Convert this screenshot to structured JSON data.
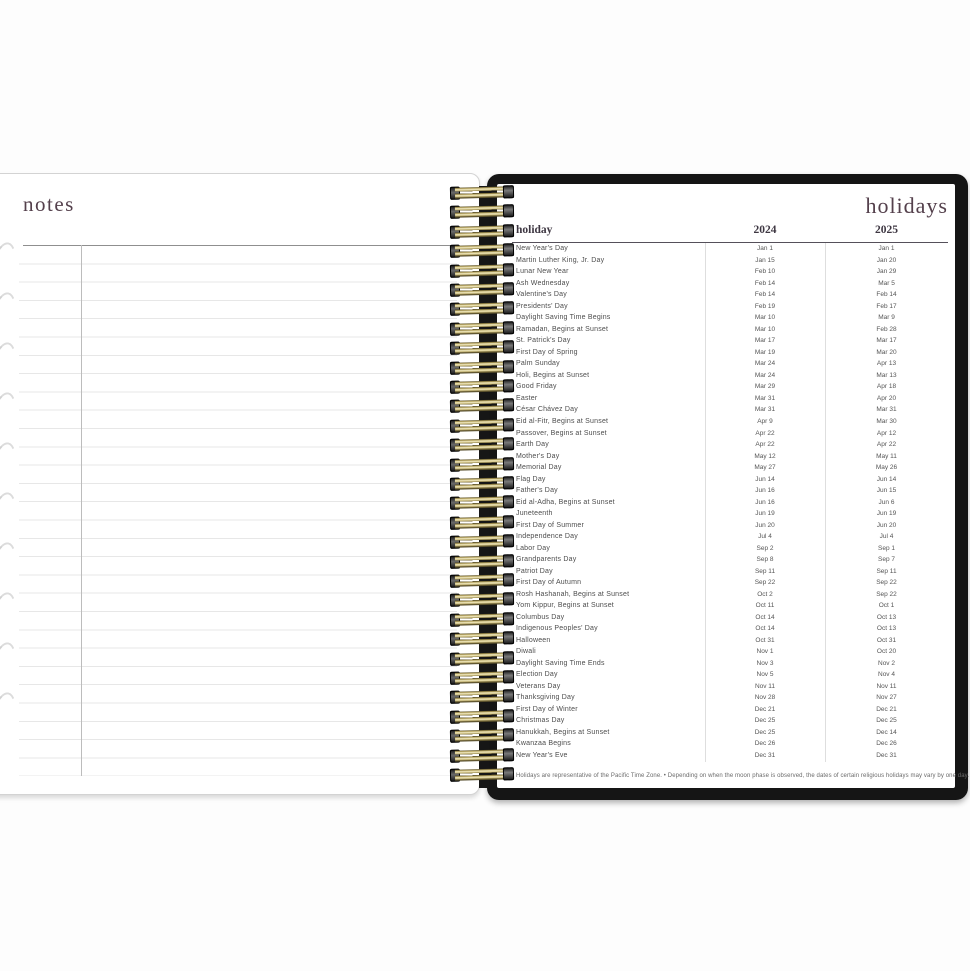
{
  "left_page": {
    "title": "notes"
  },
  "right_page": {
    "title": "holidays",
    "table": {
      "headers": [
        "holiday",
        "2024",
        "2025"
      ],
      "rows": [
        {
          "name": "New Year's Day",
          "d2024": "Jan 1",
          "d2025": "Jan 1"
        },
        {
          "name": "Martin Luther King, Jr. Day",
          "d2024": "Jan 15",
          "d2025": "Jan 20"
        },
        {
          "name": "Lunar New Year",
          "d2024": "Feb 10",
          "d2025": "Jan 29"
        },
        {
          "name": "Ash Wednesday",
          "d2024": "Feb 14",
          "d2025": "Mar 5"
        },
        {
          "name": "Valentine's Day",
          "d2024": "Feb 14",
          "d2025": "Feb 14"
        },
        {
          "name": "Presidents' Day",
          "d2024": "Feb 19",
          "d2025": "Feb 17"
        },
        {
          "name": "Daylight Saving Time Begins",
          "d2024": "Mar 10",
          "d2025": "Mar 9"
        },
        {
          "name": "Ramadan, Begins at Sunset",
          "d2024": "Mar 10",
          "d2025": "Feb 28"
        },
        {
          "name": "St. Patrick's Day",
          "d2024": "Mar 17",
          "d2025": "Mar 17"
        },
        {
          "name": "First Day of Spring",
          "d2024": "Mar 19",
          "d2025": "Mar 20"
        },
        {
          "name": "Palm Sunday",
          "d2024": "Mar 24",
          "d2025": "Apr 13"
        },
        {
          "name": "Holi, Begins at Sunset",
          "d2024": "Mar 24",
          "d2025": "Mar 13"
        },
        {
          "name": "Good Friday",
          "d2024": "Mar 29",
          "d2025": "Apr 18"
        },
        {
          "name": "Easter",
          "d2024": "Mar 31",
          "d2025": "Apr 20"
        },
        {
          "name": "César Chávez Day",
          "d2024": "Mar 31",
          "d2025": "Mar 31"
        },
        {
          "name": "Eid al-Fitr, Begins at Sunset",
          "d2024": "Apr 9",
          "d2025": "Mar 30"
        },
        {
          "name": "Passover, Begins at Sunset",
          "d2024": "Apr 22",
          "d2025": "Apr 12"
        },
        {
          "name": "Earth Day",
          "d2024": "Apr 22",
          "d2025": "Apr 22"
        },
        {
          "name": "Mother's Day",
          "d2024": "May 12",
          "d2025": "May 11"
        },
        {
          "name": "Memorial Day",
          "d2024": "May 27",
          "d2025": "May 26"
        },
        {
          "name": "Flag Day",
          "d2024": "Jun 14",
          "d2025": "Jun 14"
        },
        {
          "name": "Father's Day",
          "d2024": "Jun 16",
          "d2025": "Jun 15"
        },
        {
          "name": "Eid al-Adha, Begins at Sunset",
          "d2024": "Jun 16",
          "d2025": "Jun 6"
        },
        {
          "name": "Juneteenth",
          "d2024": "Jun 19",
          "d2025": "Jun 19"
        },
        {
          "name": "First Day of Summer",
          "d2024": "Jun 20",
          "d2025": "Jun 20"
        },
        {
          "name": "Independence Day",
          "d2024": "Jul 4",
          "d2025": "Jul 4"
        },
        {
          "name": "Labor Day",
          "d2024": "Sep 2",
          "d2025": "Sep 1"
        },
        {
          "name": "Grandparents Day",
          "d2024": "Sep 8",
          "d2025": "Sep 7"
        },
        {
          "name": "Patriot Day",
          "d2024": "Sep 11",
          "d2025": "Sep 11"
        },
        {
          "name": "First Day of Autumn",
          "d2024": "Sep 22",
          "d2025": "Sep 22"
        },
        {
          "name": "Rosh Hashanah, Begins at Sunset",
          "d2024": "Oct 2",
          "d2025": "Sep 22"
        },
        {
          "name": "Yom Kippur, Begins at Sunset",
          "d2024": "Oct 11",
          "d2025": "Oct 1"
        },
        {
          "name": "Columbus Day",
          "d2024": "Oct 14",
          "d2025": "Oct 13"
        },
        {
          "name": "Indigenous Peoples' Day",
          "d2024": "Oct 14",
          "d2025": "Oct 13"
        },
        {
          "name": "Halloween",
          "d2024": "Oct 31",
          "d2025": "Oct 31"
        },
        {
          "name": "Diwali",
          "d2024": "Nov 1",
          "d2025": "Oct 20"
        },
        {
          "name": "Daylight Saving Time Ends",
          "d2024": "Nov 3",
          "d2025": "Nov 2"
        },
        {
          "name": "Election Day",
          "d2024": "Nov 5",
          "d2025": "Nov 4"
        },
        {
          "name": "Veterans Day",
          "d2024": "Nov 11",
          "d2025": "Nov 11"
        },
        {
          "name": "Thanksgiving Day",
          "d2024": "Nov 28",
          "d2025": "Nov 27"
        },
        {
          "name": "First Day of Winter",
          "d2024": "Dec 21",
          "d2025": "Dec 21"
        },
        {
          "name": "Christmas Day",
          "d2024": "Dec 25",
          "d2025": "Dec 25"
        },
        {
          "name": "Hanukkah, Begins at Sunset",
          "d2024": "Dec 25",
          "d2025": "Dec 14"
        },
        {
          "name": "Kwanzaa Begins",
          "d2024": "Dec 26",
          "d2025": "Dec 26"
        },
        {
          "name": "New Year's Eve",
          "d2024": "Dec 31",
          "d2025": "Dec 31"
        }
      ],
      "footnote": "Holidays are representative of the Pacific Time Zone.   •   Depending on when the moon phase is observed, the dates of certain religious holidays may vary by one day."
    }
  },
  "colors": {
    "accent": "#54404c",
    "cover": "#151515"
  }
}
